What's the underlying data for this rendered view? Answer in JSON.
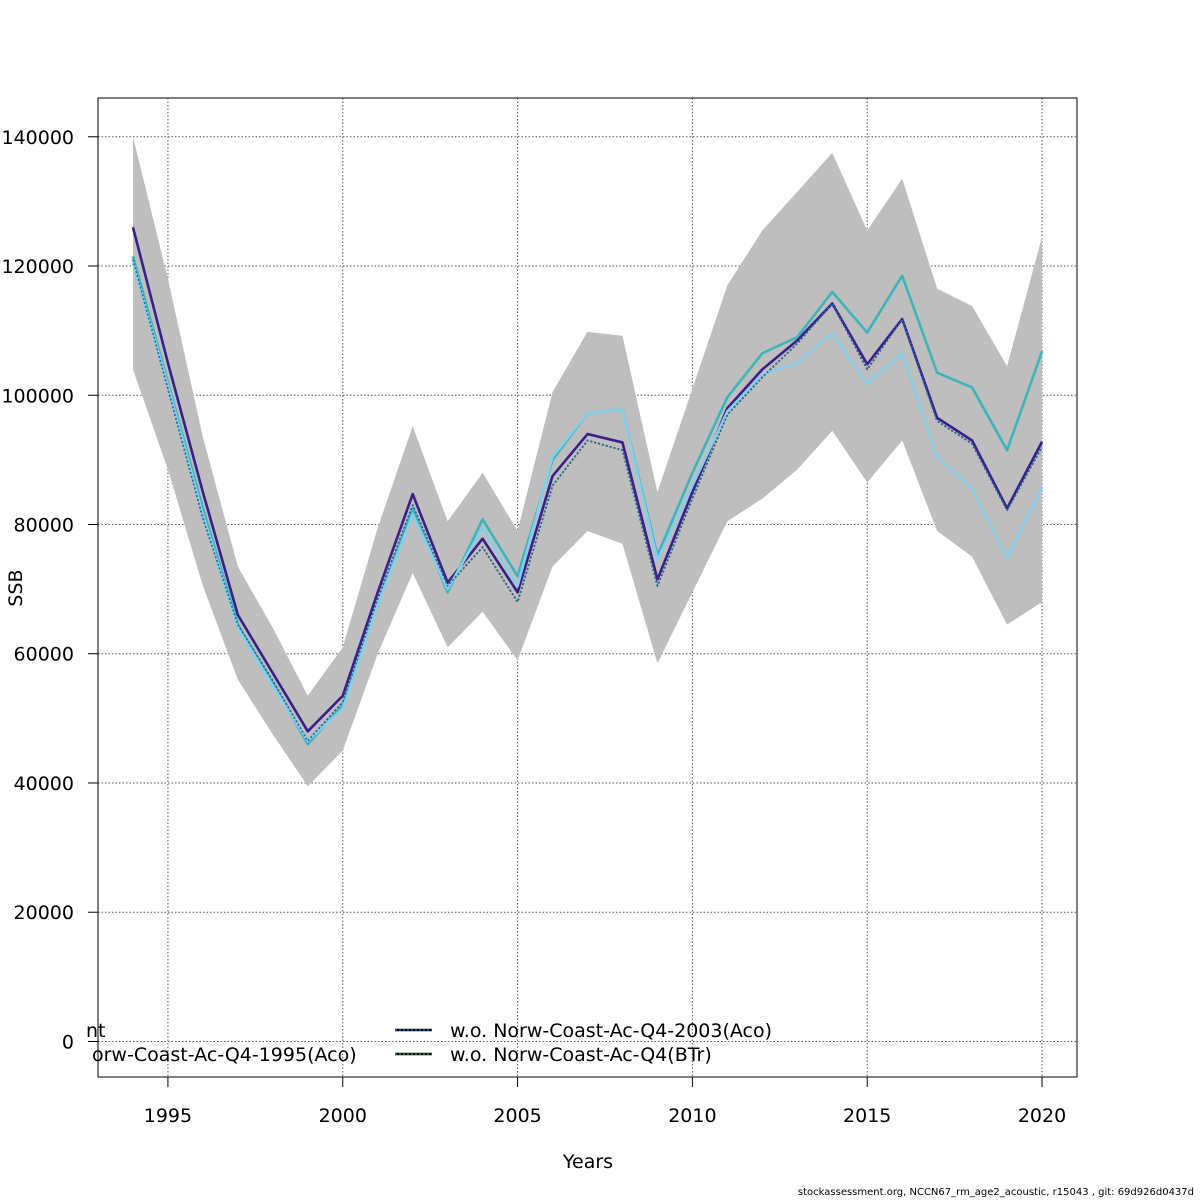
{
  "chart_data": {
    "type": "line",
    "xlabel": "Years",
    "ylabel": "SSB",
    "xlim": [
      1993,
      2021
    ],
    "ylim": [
      -5500,
      146000
    ],
    "x_ticks": [
      1995,
      2000,
      2005,
      2010,
      2015,
      2020
    ],
    "y_ticks": [
      0,
      20000,
      40000,
      60000,
      80000,
      100000,
      120000,
      140000
    ],
    "y_tick_labels": [
      "0",
      "20000",
      "40000",
      "60000",
      "80000",
      "100000",
      "120000",
      "140000"
    ],
    "grid": true,
    "years": [
      1994,
      1995,
      1996,
      1997,
      1998,
      1999,
      2000,
      2001,
      2002,
      2003,
      2004,
      2005,
      2006,
      2007,
      2008,
      2009,
      2010,
      2011,
      2012,
      2013,
      2014,
      2015,
      2016,
      2017,
      2018,
      2019,
      2020
    ],
    "band": {
      "color": "#bebebe",
      "upper": [
        140000,
        118000,
        93500,
        73500,
        64000,
        53500,
        61000,
        79500,
        95200,
        80500,
        88000,
        79000,
        100500,
        109800,
        109200,
        85000,
        101000,
        117000,
        125500,
        131500,
        137500,
        125500,
        133500,
        116500,
        113800,
        104500,
        124500
      ],
      "lower": [
        104000,
        88500,
        70500,
        56000,
        47500,
        39500,
        45000,
        60000,
        72500,
        61000,
        66500,
        59000,
        73500,
        79000,
        77000,
        58500,
        69500,
        80500,
        84000,
        88500,
        94500,
        86500,
        93000,
        79000,
        75000,
        64500,
        68000
      ]
    },
    "series": [
      {
        "color": "#000000",
        "dashed": true,
        "values": [
          121000,
          101000,
          81000,
          64500,
          55800,
          46500,
          52500,
          68500,
          83000,
          70500,
          76500,
          68000,
          86000,
          93000,
          91500,
          70500,
          84000,
          97000,
          102800,
          108000,
          114200,
          104000,
          111800,
          96000,
          92500,
          82200,
          92000
        ]
      },
      {
        "color": "#3a1f88",
        "dashed": false,
        "values": [
          126000,
          105000,
          85000,
          66000,
          57000,
          48000,
          53500,
          69500,
          84700,
          71000,
          77800,
          69500,
          87500,
          94000,
          92700,
          71500,
          85000,
          98000,
          104000,
          108500,
          114200,
          104800,
          111800,
          96500,
          93000,
          82500,
          92800
        ]
      },
      {
        "color": "#3db3bc",
        "dashed": false,
        "values": [
          121500,
          102000,
          82500,
          64500,
          55500,
          46000,
          52000,
          67500,
          82500,
          69500,
          80800,
          72000,
          90000,
          97200,
          97800,
          75200,
          88000,
          99700,
          106500,
          109000,
          116000,
          109700,
          118500,
          103500,
          101200,
          91500,
          106800
        ]
      },
      {
        "color": "#87ceeb",
        "dashed": false,
        "values": [
          120500,
          101500,
          81500,
          64000,
          55000,
          46500,
          51500,
          67500,
          81500,
          70000,
          79500,
          70500,
          90500,
          97200,
          97800,
          74500,
          86000,
          97500,
          103200,
          105000,
          109600,
          101800,
          106500,
          90500,
          85500,
          74800,
          85800
        ]
      },
      {
        "color": "#1e6e9e",
        "dashed": true,
        "values": [
          121000,
          101000,
          81000,
          64500,
          55800,
          46500,
          52500,
          68500,
          83000,
          70500,
          76500,
          68000,
          86000,
          93000,
          91500,
          70500,
          84000,
          97000,
          102800,
          108000,
          114200,
          104000,
          111800,
          96000,
          92500,
          82200,
          92000
        ]
      }
    ],
    "legend": {
      "position": "bottom",
      "entries": [
        {
          "label": "nt",
          "color": "#000000",
          "dashed": false
        },
        {
          "label": "w.o. Norw-Coast-Ac-Q4-2003(Aco)",
          "color": "#2166ac",
          "dashed": true
        },
        {
          "label": "orw-Coast-Ac-Q4-1995(Aco)",
          "color": "#000000",
          "dashed": false
        },
        {
          "label": "w.o. Norw-Coast-Ac-Q4(BTr)",
          "color": "#2e8b57",
          "dashed": true
        }
      ]
    }
  },
  "footer": "stockassessment.org, NCCN67_rm_age2_acoustic, r15043 , git: 69d926d0437d"
}
